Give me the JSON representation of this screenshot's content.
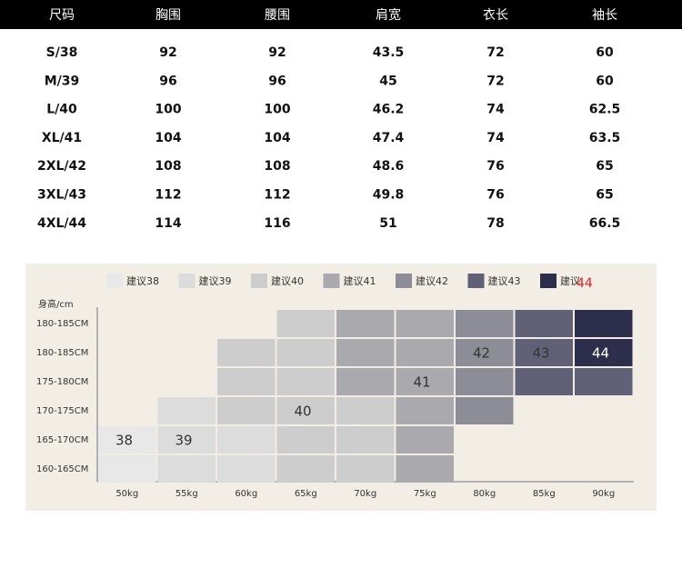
{
  "table": {
    "header": [
      "尺码",
      "胸围",
      "腰围",
      "肩宽",
      "衣长",
      "袖长"
    ],
    "rows": [
      [
        "S/38",
        "92",
        "92",
        "43.5",
        "72",
        "60"
      ],
      [
        "M/39",
        "96",
        "96",
        "45",
        "72",
        "60"
      ],
      [
        "L/40",
        "100",
        "100",
        "46.2",
        "74",
        "62.5"
      ],
      [
        "XL/41",
        "104",
        "104",
        "47.4",
        "74",
        "63.5"
      ],
      [
        "2XL/42",
        "108",
        "108",
        "48.6",
        "76",
        "65"
      ],
      [
        "3XL/43",
        "112",
        "112",
        "49.8",
        "76",
        "65"
      ],
      [
        "4XL/44",
        "114",
        "116",
        "51",
        "78",
        "66.5"
      ]
    ]
  },
  "size_guide": {
    "legend": [
      {
        "label": "建议38",
        "size": 38,
        "color": "#e8e8e8"
      },
      {
        "label": "建议39",
        "size": 39,
        "color": "#dcdcdc"
      },
      {
        "label": "建议40",
        "size": 40,
        "color": "#cdcdcd"
      },
      {
        "label": "建议41",
        "size": 41,
        "color": "#a9a9ae"
      },
      {
        "label": "建议42",
        "size": 42,
        "color": "#8d8d98"
      },
      {
        "label": "建议43",
        "size": 43,
        "color": "#606076"
      },
      {
        "label": "建议",
        "size": 44,
        "color": "#2d2d4c",
        "correction": "44"
      }
    ],
    "y_title": "身高/cm",
    "weights": [
      "50kg",
      "55kg",
      "60kg",
      "65kg",
      "70kg",
      "75kg",
      "80kg",
      "85kg",
      "90kg"
    ],
    "rows": [
      {
        "height": "180-185CM",
        "cells": [
          null,
          null,
          null,
          40,
          41,
          41,
          42,
          43,
          44
        ],
        "labels": [
          null,
          null,
          null,
          null,
          null,
          null,
          null,
          null,
          null
        ]
      },
      {
        "height": "180-185CM",
        "cells": [
          null,
          null,
          40,
          40,
          41,
          41,
          42,
          43,
          44
        ],
        "labels": [
          null,
          null,
          null,
          null,
          null,
          null,
          "42",
          "43",
          "44"
        ]
      },
      {
        "height": "175-180CM",
        "cells": [
          null,
          null,
          40,
          40,
          41,
          41,
          42,
          43,
          43
        ],
        "labels": [
          null,
          null,
          null,
          null,
          null,
          "41",
          null,
          null,
          null
        ]
      },
      {
        "height": "170-175CM",
        "cells": [
          null,
          39,
          40,
          40,
          40,
          41,
          42,
          null,
          null
        ],
        "labels": [
          null,
          null,
          null,
          "40",
          null,
          null,
          null,
          null,
          null
        ]
      },
      {
        "height": "165-170CM",
        "cells": [
          38,
          39,
          39,
          40,
          40,
          41,
          null,
          null,
          null
        ],
        "labels": [
          "38",
          "39",
          null,
          null,
          null,
          null,
          null,
          null,
          null
        ]
      },
      {
        "height": "160-165CM",
        "cells": [
          38,
          39,
          39,
          40,
          40,
          41,
          null,
          null,
          null
        ],
        "labels": [
          null,
          null,
          null,
          null,
          null,
          null,
          null,
          null,
          null
        ]
      }
    ]
  }
}
